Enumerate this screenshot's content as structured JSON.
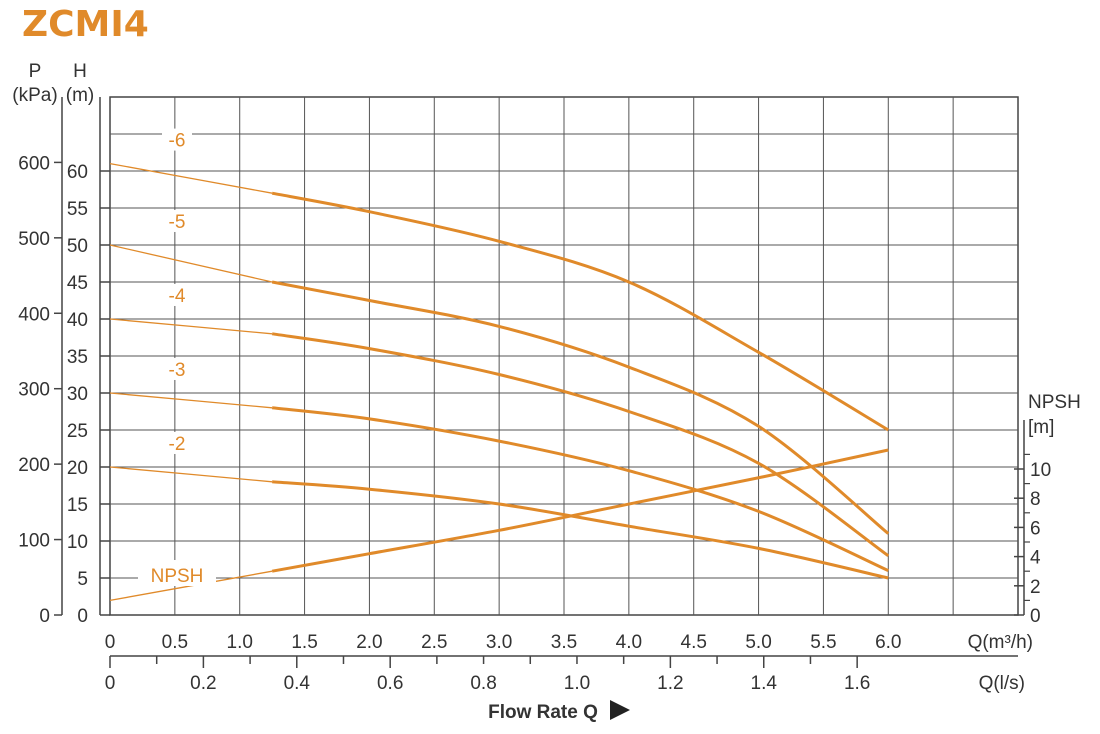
{
  "title": "ZCMI4",
  "chart_data": {
    "type": "line",
    "title": "ZCMI4",
    "left_axis_p": {
      "label_line1": "P",
      "label_line2": "(kPa)",
      "ticks": [
        0,
        100,
        200,
        300,
        400,
        500,
        600
      ]
    },
    "left_axis_h": {
      "label_line1": "H",
      "label_line2": "(m)",
      "ticks": [
        0,
        5,
        10,
        15,
        20,
        25,
        30,
        35,
        40,
        45,
        50,
        55,
        60
      ],
      "ylim": [
        0,
        70
      ]
    },
    "right_axis_npsh": {
      "label_line1": "NPSH",
      "label_line2": "[m]",
      "ticks": [
        0,
        2,
        4,
        6,
        8,
        10
      ]
    },
    "x_axis_m3h": {
      "label": "Q(m³/h)",
      "ticks": [
        "0",
        "0.5",
        "1.0",
        "1.5",
        "2.0",
        "2.5",
        "3.0",
        "3.5",
        "4.0",
        "4.5",
        "5.0",
        "5.5",
        "6.0"
      ],
      "xlim": [
        0,
        7
      ]
    },
    "x_axis_ls": {
      "label": "Q(l/s)",
      "ticks": [
        "0",
        "0.2",
        "0.4",
        "0.6",
        "0.8",
        "1.0",
        "1.2",
        "1.4",
        "1.6"
      ]
    },
    "xlabel": "Flow Rate Q",
    "grid": true,
    "color": "#e08a2a",
    "series": [
      {
        "name": "-6",
        "x": [
          0,
          1.25,
          2.0,
          3.0,
          4.0,
          5.0,
          6.0
        ],
        "y": [
          61,
          57,
          54.5,
          50.5,
          45,
          35.5,
          25
        ]
      },
      {
        "name": "-5",
        "x": [
          0,
          1.25,
          2.0,
          3.0,
          4.0,
          5.0,
          6.0
        ],
        "y": [
          50,
          45,
          42.5,
          39,
          33.5,
          25.5,
          11
        ]
      },
      {
        "name": "-4",
        "x": [
          0,
          1.25,
          2.0,
          3.0,
          4.0,
          5.0,
          6.0
        ],
        "y": [
          40,
          38,
          36,
          32.5,
          27.5,
          20.5,
          8
        ]
      },
      {
        "name": "-3",
        "x": [
          0,
          1.25,
          2.0,
          3.0,
          4.0,
          5.0,
          6.0
        ],
        "y": [
          30,
          28,
          26.5,
          23.5,
          19.5,
          14,
          6
        ]
      },
      {
        "name": "-2",
        "x": [
          0,
          1.25,
          2.0,
          3.0,
          4.0,
          5.0,
          6.0
        ],
        "y": [
          20,
          18,
          17,
          15,
          12,
          9,
          5
        ]
      },
      {
        "name": "NPSH",
        "x": [
          0,
          1.25,
          2.0,
          3.0,
          4.0,
          5.0,
          6.0
        ],
        "y": [
          1,
          3,
          4.2,
          5.8,
          7.6,
          9.4,
          11.3
        ]
      }
    ]
  }
}
